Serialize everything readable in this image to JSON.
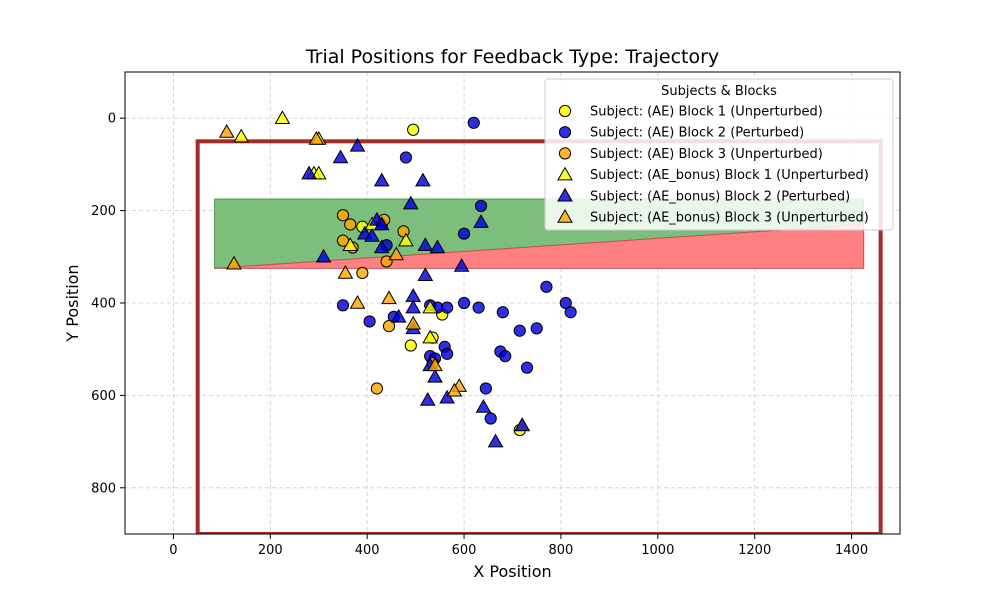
{
  "chart_data": {
    "type": "scatter",
    "title": "Trial Positions for Feedback Type: Trajectory",
    "xlabel": "X Position",
    "ylabel": "Y Position",
    "xlim": [
      -100,
      1500
    ],
    "ylim": [
      900,
      -100
    ],
    "y_inverted": true,
    "xticks": [
      0,
      200,
      400,
      600,
      800,
      1000,
      1200,
      1400
    ],
    "yticks": [
      0,
      200,
      400,
      600,
      800
    ],
    "grid": true,
    "legend": {
      "title": "Subjects & Blocks",
      "placement": "top-right"
    },
    "colors": {
      "block1": "#ffff00",
      "block2": "#0000dd",
      "block3": "#ffa500",
      "frame": "#a52a2a",
      "green_zone": "#7cbf7c",
      "red_zone": "#ff8080"
    },
    "regions": {
      "workspace_rect": {
        "x": [
          50,
          1460
        ],
        "y": [
          50,
          900
        ]
      },
      "green_polygon": [
        [
          85,
          175
        ],
        [
          1425,
          175
        ],
        [
          1425,
          230
        ],
        [
          85,
          325
        ]
      ],
      "red_polygon": [
        [
          85,
          325
        ],
        [
          1425,
          230
        ],
        [
          1425,
          325
        ]
      ]
    },
    "series": [
      {
        "name": "Subject: (AE) Block 1 (Unperturbed)",
        "marker": "circle",
        "color": "#ffff00",
        "points": [
          [
            495,
            25
          ],
          [
            390,
            235
          ],
          [
            535,
            475
          ],
          [
            555,
            425
          ],
          [
            490,
            492
          ],
          [
            715,
            675
          ]
        ]
      },
      {
        "name": "Subject: (AE) Block 2 (Perturbed)",
        "marker": "circle",
        "color": "#0000dd",
        "points": [
          [
            620,
            10
          ],
          [
            480,
            85
          ],
          [
            635,
            190
          ],
          [
            600,
            250
          ],
          [
            430,
            230
          ],
          [
            440,
            275
          ],
          [
            350,
            405
          ],
          [
            405,
            440
          ],
          [
            455,
            430
          ],
          [
            530,
            405
          ],
          [
            545,
            410
          ],
          [
            565,
            410
          ],
          [
            600,
            400
          ],
          [
            630,
            410
          ],
          [
            680,
            420
          ],
          [
            715,
            460
          ],
          [
            750,
            455
          ],
          [
            770,
            365
          ],
          [
            810,
            400
          ],
          [
            820,
            420
          ],
          [
            530,
            515
          ],
          [
            560,
            495
          ],
          [
            565,
            510
          ],
          [
            540,
            520
          ],
          [
            675,
            505
          ],
          [
            685,
            515
          ],
          [
            730,
            540
          ],
          [
            645,
            585
          ],
          [
            655,
            650
          ]
        ]
      },
      {
        "name": "Subject: (AE) Block 3 (Unperturbed)",
        "marker": "circle",
        "color": "#ffa500",
        "points": [
          [
            350,
            210
          ],
          [
            365,
            230
          ],
          [
            350,
            265
          ],
          [
            370,
            280
          ],
          [
            435,
            220
          ],
          [
            475,
            245
          ],
          [
            390,
            335
          ],
          [
            440,
            310
          ],
          [
            445,
            450
          ],
          [
            420,
            585
          ],
          [
            535,
            530
          ]
        ]
      },
      {
        "name": "Subject: (AE_bonus) Block 1 (Unperturbed)",
        "marker": "triangle",
        "color": "#ffff00",
        "points": [
          [
            140,
            40
          ],
          [
            225,
            0
          ],
          [
            300,
            45
          ],
          [
            290,
            120
          ],
          [
            300,
            120
          ],
          [
            365,
            275
          ],
          [
            410,
            230
          ],
          [
            480,
            265
          ],
          [
            530,
            410
          ],
          [
            530,
            475
          ],
          [
            720,
            665
          ]
        ]
      },
      {
        "name": "Subject: (AE_bonus) Block 2 (Perturbed)",
        "marker": "triangle",
        "color": "#0000dd",
        "points": [
          [
            380,
            60
          ],
          [
            345,
            85
          ],
          [
            280,
            120
          ],
          [
            430,
            135
          ],
          [
            515,
            135
          ],
          [
            490,
            185
          ],
          [
            420,
            220
          ],
          [
            430,
            230
          ],
          [
            395,
            250
          ],
          [
            410,
            255
          ],
          [
            430,
            280
          ],
          [
            520,
            275
          ],
          [
            545,
            280
          ],
          [
            635,
            225
          ],
          [
            595,
            320
          ],
          [
            520,
            340
          ],
          [
            310,
            300
          ],
          [
            495,
            385
          ],
          [
            495,
            410
          ],
          [
            495,
            455
          ],
          [
            465,
            430
          ],
          [
            530,
            535
          ],
          [
            540,
            560
          ],
          [
            525,
            610
          ],
          [
            565,
            605
          ],
          [
            640,
            625
          ],
          [
            665,
            700
          ],
          [
            720,
            665
          ]
        ]
      },
      {
        "name": "Subject: (AE_bonus) Block 3 (Unperturbed)",
        "marker": "triangle",
        "color": "#ffa500",
        "points": [
          [
            110,
            30
          ],
          [
            295,
            45
          ],
          [
            125,
            315
          ],
          [
            355,
            335
          ],
          [
            380,
            400
          ],
          [
            445,
            390
          ],
          [
            460,
            295
          ],
          [
            495,
            445
          ],
          [
            540,
            535
          ],
          [
            590,
            580
          ],
          [
            580,
            590
          ]
        ]
      }
    ]
  }
}
